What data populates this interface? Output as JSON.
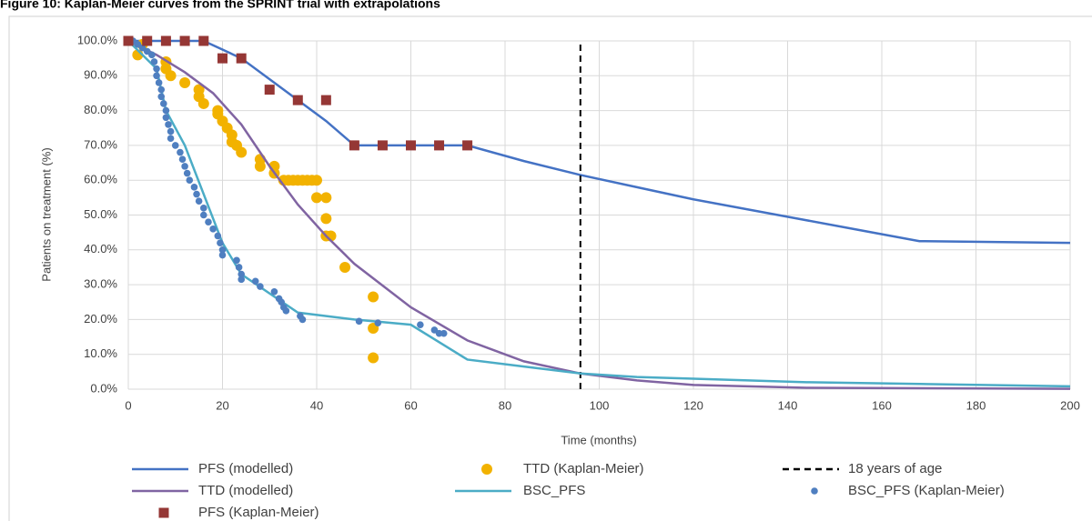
{
  "chart_data": {
    "type": "line",
    "title": "Figure 10: Kaplan-Meier curves from the SPRINT trial with extrapolations",
    "x_label": "Time (months)",
    "y_label": "Patients on treatment (%)",
    "xlim": [
      0,
      200
    ],
    "xticks": [
      0,
      20,
      40,
      60,
      80,
      100,
      120,
      140,
      160,
      180,
      200
    ],
    "ylim": [
      0,
      100
    ],
    "yticks": [
      {
        "value": 0,
        "label": "0.0%"
      },
      {
        "value": 10,
        "label": "10.0%"
      },
      {
        "value": 20,
        "label": "20.0%"
      },
      {
        "value": 30,
        "label": "30.0%"
      },
      {
        "value": 40,
        "label": "40.0%"
      },
      {
        "value": 50,
        "label": "50.0%"
      },
      {
        "value": 60,
        "label": "60.0%"
      },
      {
        "value": 70,
        "label": "70.0%"
      },
      {
        "value": 80,
        "label": "80.0%"
      },
      {
        "value": 90,
        "label": "90.0%"
      },
      {
        "value": 100,
        "label": "100.0%"
      }
    ],
    "grid": true,
    "legend": "bottom",
    "series": [
      {
        "name": "PFS (modelled)",
        "kind": "line",
        "color": "#4472c4",
        "x": [
          0,
          16,
          24,
          30,
          36,
          42,
          48,
          72,
          84,
          96,
          108,
          120,
          132,
          144,
          156,
          168,
          200
        ],
        "values": [
          100,
          100,
          95,
          89,
          83,
          77,
          70,
          70,
          65.5,
          61.5,
          58,
          54.5,
          51.5,
          48.5,
          45.5,
          42.5,
          42
        ]
      },
      {
        "name": "TTD (Kaplan-Meier)",
        "kind": "scatter",
        "marker": "circle",
        "color": "#f2b200",
        "x": [
          2,
          3,
          8,
          8,
          9,
          12,
          15,
          15,
          16,
          19,
          19,
          20,
          21,
          22,
          22,
          23,
          24,
          28,
          28,
          31,
          31,
          33,
          34,
          35,
          36,
          37,
          38,
          39,
          40,
          40,
          42,
          42,
          42,
          43,
          46,
          52,
          52,
          52
        ],
        "values": [
          96,
          99,
          94,
          92,
          90,
          88,
          86,
          84,
          82,
          80,
          79,
          77,
          75,
          73,
          71,
          70,
          68,
          66,
          64,
          64,
          62,
          60,
          60,
          60,
          60,
          60,
          60,
          60,
          60,
          55,
          55,
          49,
          44,
          44,
          35,
          26.5,
          17.5,
          9
        ]
      },
      {
        "name": "18 years of age",
        "kind": "line",
        "dash": true,
        "color": "#000000",
        "x": [
          96,
          96
        ],
        "values": [
          0,
          100
        ]
      },
      {
        "name": "TTD (modelled)",
        "kind": "line",
        "color": "#8064a2",
        "x": [
          0,
          6,
          12,
          18,
          24,
          30,
          36,
          42,
          48,
          60,
          72,
          84,
          96,
          108,
          120,
          144,
          200
        ],
        "values": [
          100,
          96,
          91,
          85,
          76,
          64,
          53,
          44,
          36,
          23.5,
          14,
          8,
          4.5,
          2.5,
          1.2,
          0.4,
          0.1
        ]
      },
      {
        "name": "BSC_PFS",
        "kind": "line",
        "color": "#4bacc6",
        "x": [
          0,
          6,
          8,
          12,
          20,
          24,
          36,
          48,
          60,
          72,
          84,
          96,
          108,
          120,
          144,
          168,
          200
        ],
        "values": [
          100,
          92,
          80,
          70,
          42,
          33,
          22,
          20,
          18.5,
          8.5,
          6.5,
          4.5,
          3.5,
          3,
          2,
          1.5,
          0.8
        ]
      },
      {
        "name": "BSC_PFS (Kaplan-Meier)",
        "kind": "scatter",
        "marker": "dot",
        "color": "#4f7fc0",
        "x": [
          1,
          2,
          3,
          4,
          5,
          5.5,
          6,
          6,
          6.5,
          7,
          7,
          7.5,
          8,
          8,
          8.5,
          9,
          9,
          10,
          11,
          11.5,
          12,
          12.5,
          13,
          14,
          14.5,
          15,
          16,
          16,
          17,
          18,
          19,
          19.5,
          20,
          20,
          23,
          23.5,
          24,
          24,
          27,
          28,
          31,
          32,
          32.5,
          33,
          33.5,
          36.5,
          37,
          49,
          53,
          62,
          65,
          66,
          67
        ],
        "values": [
          100,
          99,
          98,
          97,
          96,
          94,
          92,
          90,
          88,
          86,
          84,
          82,
          80,
          78,
          76,
          74,
          72,
          70,
          68,
          66,
          64,
          62,
          60,
          58,
          56,
          54,
          52,
          50,
          48,
          46,
          44,
          42,
          40,
          38.5,
          37,
          35,
          33,
          31.5,
          31,
          29.5,
          28,
          26,
          25,
          23.5,
          22.5,
          21,
          20,
          19.5,
          19,
          18.5,
          17,
          16,
          16
        ]
      },
      {
        "name": "PFS (Kaplan-Meier)",
        "kind": "scatter",
        "marker": "square",
        "color": "#953735",
        "x": [
          0,
          4,
          8,
          12,
          16,
          20,
          24,
          30,
          36,
          42,
          48,
          54,
          60,
          66,
          72
        ],
        "values": [
          100,
          100,
          100,
          100,
          100,
          95,
          95,
          86,
          83,
          83,
          70,
          70,
          70,
          70,
          70
        ]
      }
    ]
  }
}
